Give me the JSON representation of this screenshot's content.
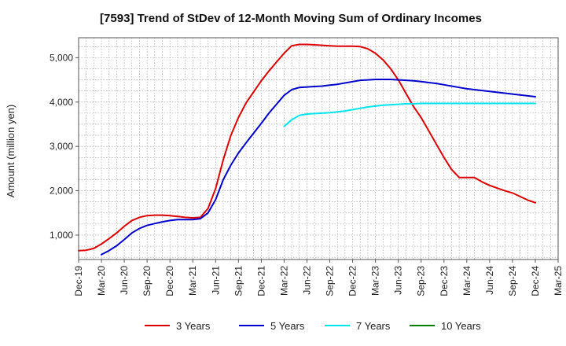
{
  "chart_data": {
    "type": "line",
    "title": "[7593]  Trend of StDev of 12-Month Moving Sum of Ordinary Incomes",
    "xlabel": "",
    "ylabel": "Amount (million yen)",
    "x_ticks": [
      "Dec-19",
      "Mar-20",
      "Jun-20",
      "Sep-20",
      "Dec-20",
      "Mar-21",
      "Jun-21",
      "Sep-21",
      "Dec-21",
      "Mar-22",
      "Jun-22",
      "Sep-22",
      "Dec-22",
      "Mar-23",
      "Jun-23",
      "Sep-23",
      "Dec-23",
      "Mar-24",
      "Jun-24",
      "Sep-24",
      "Dec-24",
      "Mar-25"
    ],
    "y_ticks": [
      1000,
      2000,
      3000,
      4000,
      5000
    ],
    "y_tick_labels": [
      "1,000",
      "2,000",
      "3,000",
      "4,000",
      "5,000"
    ],
    "ylim": [
      450,
      5450
    ],
    "grid": true,
    "legend_position": "bottom",
    "series": [
      {
        "name": "3 Years",
        "color": "#dd0000",
        "x": [
          "Dec-19",
          "Jan-20",
          "Feb-20",
          "Mar-20",
          "Apr-20",
          "May-20",
          "Jun-20",
          "Jul-20",
          "Aug-20",
          "Sep-20",
          "Oct-20",
          "Nov-20",
          "Dec-20",
          "Jan-21",
          "Feb-21",
          "Mar-21",
          "Apr-21",
          "May-21",
          "Jun-21",
          "Jul-21",
          "Aug-21",
          "Sep-21",
          "Oct-21",
          "Nov-21",
          "Dec-21",
          "Jan-22",
          "Feb-22",
          "Mar-22",
          "Apr-22",
          "May-22",
          "Jun-22",
          "Jul-22",
          "Aug-22",
          "Sep-22",
          "Oct-22",
          "Nov-22",
          "Dec-22",
          "Jan-23",
          "Feb-23",
          "Mar-23",
          "Apr-23",
          "May-23",
          "Jun-23",
          "Jul-23",
          "Aug-23",
          "Sep-23",
          "Oct-23",
          "Nov-23",
          "Dec-23",
          "Jan-24",
          "Feb-24",
          "Mar-24",
          "Apr-24",
          "May-24",
          "Jun-24",
          "Jul-24",
          "Aug-24",
          "Sep-24",
          "Oct-24",
          "Nov-24",
          "Dec-24"
        ],
        "values": [
          650,
          660,
          700,
          800,
          920,
          1050,
          1200,
          1330,
          1400,
          1440,
          1450,
          1450,
          1440,
          1420,
          1400,
          1390,
          1400,
          1600,
          2050,
          2700,
          3250,
          3650,
          3980,
          4230,
          4480,
          4700,
          4900,
          5100,
          5270,
          5300,
          5300,
          5290,
          5280,
          5270,
          5260,
          5260,
          5260,
          5250,
          5200,
          5100,
          4950,
          4750,
          4500,
          4200,
          3900,
          3650,
          3350,
          3050,
          2750,
          2480,
          2300,
          2300,
          2300,
          2200,
          2120,
          2060,
          2000,
          1950,
          1870,
          1790,
          1730
        ]
      },
      {
        "name": "5 Years",
        "color": "#0000cc",
        "x": [
          "Mar-20",
          "Apr-20",
          "May-20",
          "Jun-20",
          "Jul-20",
          "Aug-20",
          "Sep-20",
          "Oct-20",
          "Nov-20",
          "Dec-20",
          "Jan-21",
          "Feb-21",
          "Mar-21",
          "Apr-21",
          "May-21",
          "Jun-21",
          "Jul-21",
          "Aug-21",
          "Sep-21",
          "Oct-21",
          "Nov-21",
          "Dec-21",
          "Jan-22",
          "Feb-22",
          "Mar-22",
          "Apr-22",
          "May-22",
          "Jun-22",
          "Jul-22",
          "Aug-22",
          "Sep-22",
          "Oct-22",
          "Nov-22",
          "Dec-22",
          "Jan-23",
          "Feb-23",
          "Mar-23",
          "Apr-23",
          "May-23",
          "Jun-23",
          "Jul-23",
          "Aug-23",
          "Sep-23",
          "Oct-23",
          "Nov-23",
          "Dec-23",
          "Jan-24",
          "Feb-24",
          "Mar-24",
          "Apr-24",
          "May-24",
          "Jun-24",
          "Jul-24",
          "Aug-24",
          "Sep-24",
          "Oct-24",
          "Nov-24",
          "Dec-24"
        ],
        "values": [
          560,
          650,
          760,
          900,
          1050,
          1150,
          1220,
          1260,
          1300,
          1330,
          1350,
          1350,
          1350,
          1370,
          1500,
          1800,
          2250,
          2580,
          2850,
          3080,
          3300,
          3520,
          3750,
          3950,
          4150,
          4280,
          4330,
          4340,
          4350,
          4360,
          4380,
          4400,
          4430,
          4460,
          4490,
          4500,
          4510,
          4510,
          4510,
          4500,
          4490,
          4480,
          4460,
          4440,
          4420,
          4390,
          4360,
          4330,
          4300,
          4280,
          4260,
          4240,
          4220,
          4200,
          4180,
          4160,
          4140,
          4120
        ]
      },
      {
        "name": "7 Years",
        "color": "#00e5ee",
        "x": [
          "Mar-22",
          "Apr-22",
          "May-22",
          "Jun-22",
          "Jul-22",
          "Aug-22",
          "Sep-22",
          "Oct-22",
          "Nov-22",
          "Dec-22",
          "Jan-23",
          "Feb-23",
          "Mar-23",
          "Apr-23",
          "May-23",
          "Jun-23",
          "Jul-23",
          "Aug-23",
          "Sep-23",
          "Oct-23",
          "Nov-23",
          "Dec-23",
          "Jan-24",
          "Feb-24",
          "Mar-24",
          "Apr-24",
          "May-24",
          "Jun-24",
          "Jul-24",
          "Aug-24",
          "Sep-24",
          "Oct-24",
          "Nov-24",
          "Dec-24"
        ],
        "values": [
          3450,
          3600,
          3700,
          3730,
          3740,
          3750,
          3760,
          3780,
          3800,
          3830,
          3860,
          3890,
          3910,
          3930,
          3940,
          3950,
          3960,
          3960,
          3970,
          3970,
          3970,
          3970,
          3970,
          3970,
          3970,
          3970,
          3970,
          3970,
          3970,
          3970,
          3970,
          3970,
          3970,
          3970
        ]
      },
      {
        "name": "10 Years",
        "color": "#008000",
        "x": [],
        "values": []
      }
    ]
  }
}
